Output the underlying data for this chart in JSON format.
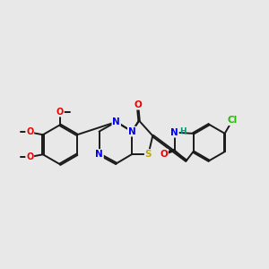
{
  "background_color": "#e8e8e8",
  "bond_color": "#1a1a1a",
  "bond_width": 1.4,
  "atom_colors": {
    "N": "#0000ee",
    "O": "#ee0000",
    "S": "#bbaa00",
    "Cl": "#22bb00",
    "H": "#009977"
  },
  "figsize": [
    3.0,
    3.0
  ],
  "dpi": 100
}
